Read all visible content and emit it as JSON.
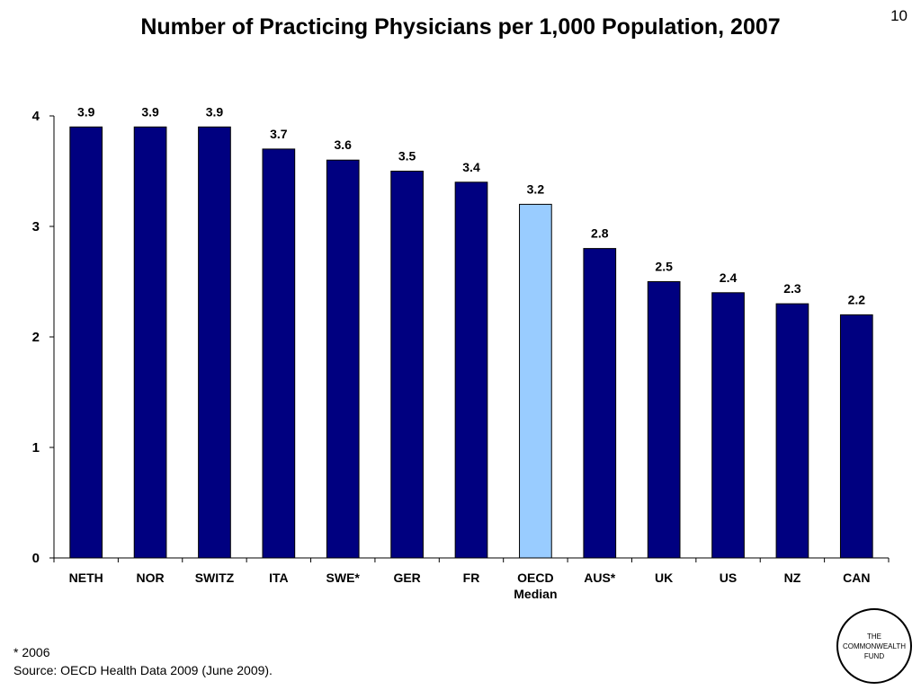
{
  "slide": {
    "title": "Number of Practicing Physicians per 1,000 Population, 2007",
    "page_number": "10"
  },
  "footnote": {
    "note": "* 2006",
    "source": "Source: OECD Health Data 2009 (June 2009)."
  },
  "logo": {
    "line1": "THE",
    "line2": "COMMONWEALTH",
    "line3": "FUND"
  },
  "colors": {
    "bar": "#000080",
    "highlight_bar": "#99CCFF",
    "bar_outline": "#000000"
  },
  "chart_data": {
    "type": "bar",
    "title": "Number of Practicing Physicians per 1,000 Population, 2007",
    "xlabel": "",
    "ylabel": "",
    "ylim": [
      0,
      4
    ],
    "yticks": [
      "0",
      "1",
      "2",
      "3",
      "4"
    ],
    "grid": false,
    "legend": "none",
    "categories": [
      "NETH",
      "NOR",
      "SWITZ",
      "ITA",
      "SWE*",
      "GER",
      "FR",
      "OECD Median",
      "AUS*",
      "UK",
      "US",
      "NZ",
      "CAN"
    ],
    "values": [
      3.9,
      3.9,
      3.9,
      3.7,
      3.6,
      3.5,
      3.4,
      3.2,
      2.8,
      2.5,
      2.4,
      2.3,
      2.2
    ],
    "data_labels": [
      "3.9",
      "3.9",
      "3.9",
      "3.7",
      "3.6",
      "3.5",
      "3.4",
      "3.2",
      "2.8",
      "2.5",
      "2.4",
      "2.3",
      "2.2"
    ],
    "highlight_category": "OECD Median"
  }
}
